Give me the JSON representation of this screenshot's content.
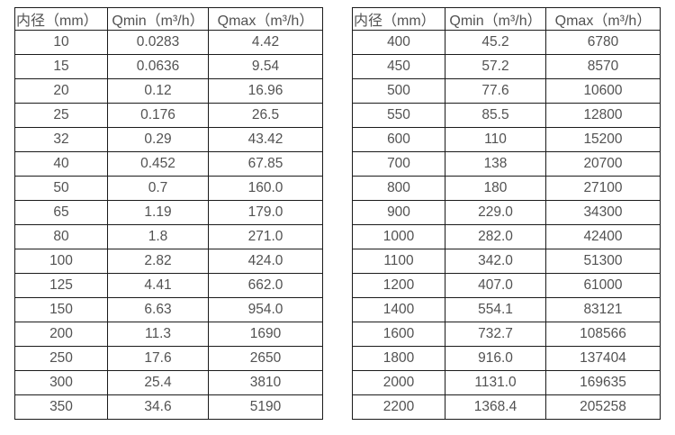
{
  "page": {
    "background_color": "#ffffff",
    "text_color": "#525252",
    "border_color": "#1b1b1b"
  },
  "tables": [
    {
      "name": "flow-spec-table-small-diameters",
      "headers": [
        "内径（mm）",
        "Qmin（m³/h）",
        "Qmax（m³/h）"
      ],
      "rows": [
        [
          "10",
          "0.0283",
          "4.42"
        ],
        [
          "15",
          "0.0636",
          "9.54"
        ],
        [
          "20",
          "0.12",
          "16.96"
        ],
        [
          "25",
          "0.176",
          "26.5"
        ],
        [
          "32",
          "0.29",
          "43.42"
        ],
        [
          "40",
          "0.452",
          "67.85"
        ],
        [
          "50",
          "0.7",
          "160.0"
        ],
        [
          "65",
          "1.19",
          "179.0"
        ],
        [
          "80",
          "1.8",
          "271.0"
        ],
        [
          "100",
          "2.82",
          "424.0"
        ],
        [
          "125",
          "4.41",
          "662.0"
        ],
        [
          "150",
          "6.63",
          "954.0"
        ],
        [
          "200",
          "11.3",
          "1690"
        ],
        [
          "250",
          "17.6",
          "2650"
        ],
        [
          "300",
          "25.4",
          "3810"
        ],
        [
          "350",
          "34.6",
          "5190"
        ]
      ]
    },
    {
      "name": "flow-spec-table-large-diameters",
      "headers": [
        "内径（mm）",
        "Qmin（m³/h）",
        "Qmax（m³/h）"
      ],
      "rows": [
        [
          "400",
          "45.2",
          "6780"
        ],
        [
          "450",
          "57.2",
          "8570"
        ],
        [
          "500",
          "77.6",
          "10600"
        ],
        [
          "550",
          "85.5",
          "12800"
        ],
        [
          "600",
          "110",
          "15200"
        ],
        [
          "700",
          "138",
          "20700"
        ],
        [
          "800",
          "180",
          "27100"
        ],
        [
          "900",
          "229.0",
          "34300"
        ],
        [
          "1000",
          "282.0",
          "42400"
        ],
        [
          "1100",
          "342.0",
          "51300"
        ],
        [
          "1200",
          "407.0",
          "61000"
        ],
        [
          "1400",
          "554.1",
          "83121"
        ],
        [
          "1600",
          "732.7",
          "108566"
        ],
        [
          "1800",
          "916.0",
          "137404"
        ],
        [
          "2000",
          "1131.0",
          "169635"
        ],
        [
          "2200",
          "1368.4",
          "205258"
        ]
      ]
    }
  ]
}
